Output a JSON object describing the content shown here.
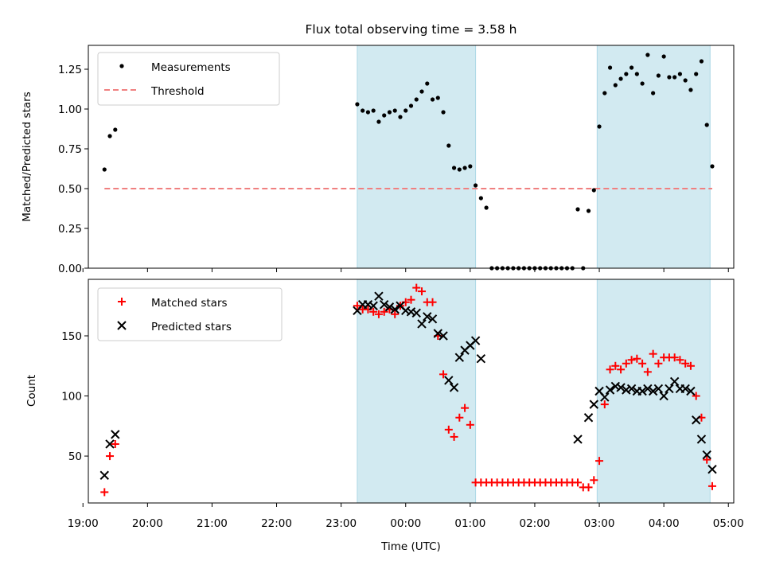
{
  "colors": {
    "shade": "#add8e6",
    "threshold": "#f08080",
    "matched": "#ff0000",
    "predicted": "#000000",
    "measurement": "#000000"
  },
  "chart_data": [
    {
      "type": "scatter",
      "title": "Flux total observing time = 3.58 h",
      "ylabel": "Matched/Predicted stars",
      "xlabel": "",
      "xlim": [
        "19:05",
        "05:05"
      ],
      "ylim": [
        0,
        1.4
      ],
      "yticks": [
        "0.00",
        "0.25",
        "0.50",
        "0.75",
        "1.00",
        "1.25"
      ],
      "legend_position": "top-left",
      "shaded_ranges": [
        [
          "23:15",
          "01:05"
        ],
        [
          "02:58",
          "04:43"
        ]
      ],
      "threshold": {
        "name": "Threshold",
        "value": 0.5,
        "x_range": [
          "19:20",
          "04:45"
        ]
      },
      "series": [
        {
          "name": "Measurements",
          "x": [
            "19:20",
            "19:25",
            "19:30",
            "23:15",
            "23:20",
            "23:25",
            "23:30",
            "23:35",
            "23:40",
            "23:45",
            "23:50",
            "23:55",
            "00:00",
            "00:05",
            "00:10",
            "00:15",
            "00:20",
            "00:25",
            "00:30",
            "00:35",
            "00:40",
            "00:45",
            "00:50",
            "00:55",
            "01:00",
            "01:05",
            "01:10",
            "01:15",
            "01:20",
            "01:25",
            "01:30",
            "01:35",
            "01:40",
            "01:45",
            "01:50",
            "01:55",
            "02:00",
            "02:05",
            "02:10",
            "02:15",
            "02:20",
            "02:25",
            "02:30",
            "02:35",
            "02:40",
            "02:45",
            "02:50",
            "02:55",
            "03:00",
            "03:05",
            "03:10",
            "03:15",
            "03:20",
            "03:25",
            "03:30",
            "03:35",
            "03:40",
            "03:45",
            "03:50",
            "03:55",
            "04:00",
            "04:05",
            "04:10",
            "04:15",
            "04:20",
            "04:25",
            "04:30",
            "04:35",
            "04:40",
            "04:45"
          ],
          "y": [
            0.62,
            0.83,
            0.87,
            1.03,
            0.99,
            0.98,
            0.99,
            0.92,
            0.96,
            0.98,
            0.99,
            0.95,
            0.99,
            1.02,
            1.06,
            1.11,
            1.16,
            1.06,
            1.07,
            0.98,
            0.77,
            0.63,
            0.62,
            0.63,
            0.64,
            0.52,
            0.44,
            0.38,
            0.0,
            0.0,
            0.0,
            0.0,
            0.0,
            0.0,
            0.0,
            0.0,
            0.0,
            0.0,
            0.0,
            0.0,
            0.0,
            0.0,
            0.0,
            0.0,
            0.37,
            0.0,
            0.36,
            0.49,
            0.89,
            1.1,
            1.26,
            1.15,
            1.19,
            1.22,
            1.26,
            1.22,
            1.16,
            1.34,
            1.1,
            1.21,
            1.33,
            1.2,
            1.2,
            1.22,
            1.18,
            1.12,
            1.22,
            1.3,
            0.9,
            0.64
          ]
        }
      ]
    },
    {
      "type": "scatter",
      "title": "",
      "ylabel": "Count",
      "xlabel": "Time (UTC)",
      "xlim": [
        "19:05",
        "05:05"
      ],
      "ylim": [
        11,
        197
      ],
      "yticks": [
        "50",
        "100",
        "150"
      ],
      "xticks": [
        "19:00",
        "20:00",
        "21:00",
        "22:00",
        "23:00",
        "00:00",
        "01:00",
        "02:00",
        "03:00",
        "04:00",
        "05:00"
      ],
      "legend_position": "top-left",
      "shaded_ranges": [
        [
          "23:15",
          "01:05"
        ],
        [
          "02:58",
          "04:43"
        ]
      ],
      "series": [
        {
          "name": "Matched stars",
          "x": [
            "19:20",
            "19:25",
            "19:30",
            "23:15",
            "23:20",
            "23:25",
            "23:30",
            "23:35",
            "23:40",
            "23:45",
            "23:50",
            "23:55",
            "00:00",
            "00:05",
            "00:10",
            "00:15",
            "00:20",
            "00:25",
            "00:30",
            "00:35",
            "00:40",
            "00:45",
            "00:50",
            "00:55",
            "01:00",
            "01:05",
            "01:10",
            "01:15",
            "01:20",
            "01:25",
            "01:30",
            "01:35",
            "01:40",
            "01:45",
            "01:50",
            "01:55",
            "02:00",
            "02:05",
            "02:10",
            "02:15",
            "02:20",
            "02:25",
            "02:30",
            "02:35",
            "02:40",
            "02:45",
            "02:50",
            "02:55",
            "03:00",
            "03:05",
            "03:10",
            "03:15",
            "03:20",
            "03:25",
            "03:30",
            "03:35",
            "03:40",
            "03:45",
            "03:50",
            "03:55",
            "04:00",
            "04:05",
            "04:10",
            "04:15",
            "04:20",
            "04:25",
            "04:30",
            "04:35",
            "04:40",
            "04:45"
          ],
          "y": [
            20,
            50,
            60,
            175,
            172,
            172,
            170,
            168,
            170,
            172,
            168,
            175,
            178,
            180,
            190,
            187,
            178,
            178,
            150,
            118,
            72,
            66,
            82,
            90,
            76,
            28,
            28,
            28,
            28,
            28,
            28,
            28,
            28,
            28,
            28,
            28,
            28,
            28,
            28,
            28,
            28,
            28,
            28,
            28,
            28,
            24,
            24,
            30,
            46,
            93,
            122,
            125,
            122,
            127,
            130,
            131,
            127,
            120,
            135,
            127,
            132,
            132,
            132,
            130,
            127,
            125,
            100,
            82,
            47,
            25
          ]
        },
        {
          "name": "Predicted stars",
          "x": [
            "19:20",
            "19:25",
            "19:30",
            "23:15",
            "23:20",
            "23:25",
            "23:30",
            "23:35",
            "23:40",
            "23:45",
            "23:50",
            "23:55",
            "00:00",
            "00:05",
            "00:10",
            "00:15",
            "00:20",
            "00:25",
            "00:30",
            "00:35",
            "00:40",
            "00:45",
            "00:50",
            "00:55",
            "01:00",
            "01:05",
            "01:10",
            "02:40",
            "02:50",
            "02:55",
            "03:00",
            "03:05",
            "03:10",
            "03:15",
            "03:20",
            "03:25",
            "03:30",
            "03:35",
            "03:40",
            "03:45",
            "03:50",
            "03:55",
            "04:00",
            "04:05",
            "04:10",
            "04:15",
            "04:20",
            "04:25",
            "04:30",
            "04:35",
            "04:40",
            "04:45"
          ],
          "y": [
            34,
            60,
            68,
            171,
            176,
            176,
            175,
            183,
            176,
            174,
            172,
            175,
            171,
            170,
            169,
            160,
            166,
            164,
            152,
            150,
            113,
            107,
            132,
            138,
            142,
            146,
            131,
            64,
            82,
            93,
            104,
            99,
            105,
            108,
            107,
            105,
            106,
            104,
            104,
            106,
            104,
            106,
            100,
            106,
            112,
            106,
            106,
            104,
            80,
            64,
            51,
            39
          ]
        }
      ]
    }
  ]
}
